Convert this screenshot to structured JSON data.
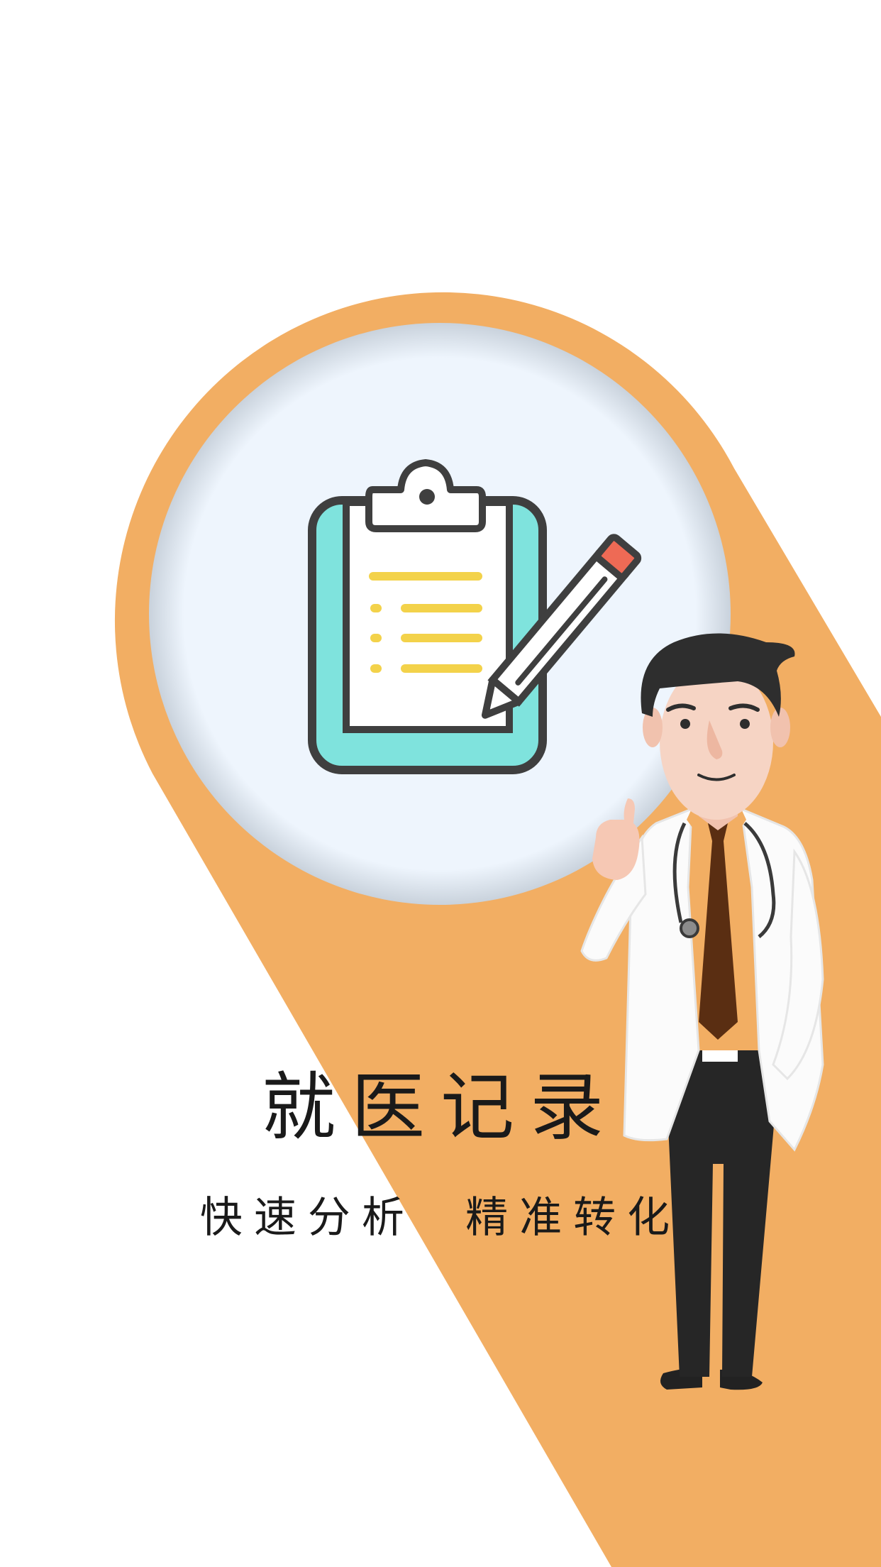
{
  "screen": {
    "title": "就医记录",
    "subtitle": "快速分析  精准转化"
  },
  "colors": {
    "background": "#ffffff",
    "accent_orange": "#F2AE63",
    "circle_fill": "#EEF5FD",
    "clipboard_outline": "#3F3F3F",
    "clipboard_teal": "#7FE3DD",
    "lines_yellow": "#F3D24A",
    "pencil_tip_red": "#EE6A55",
    "coat_white": "#FBFBFB",
    "tie_brown": "#5A2E12",
    "pants_dark": "#262626",
    "skin": "#F6D4C4",
    "hair": "#2E2E2E"
  },
  "icons": {
    "main_illustration": "clipboard-with-pencil-icon",
    "character": "doctor-thumbs-up-illustration"
  }
}
